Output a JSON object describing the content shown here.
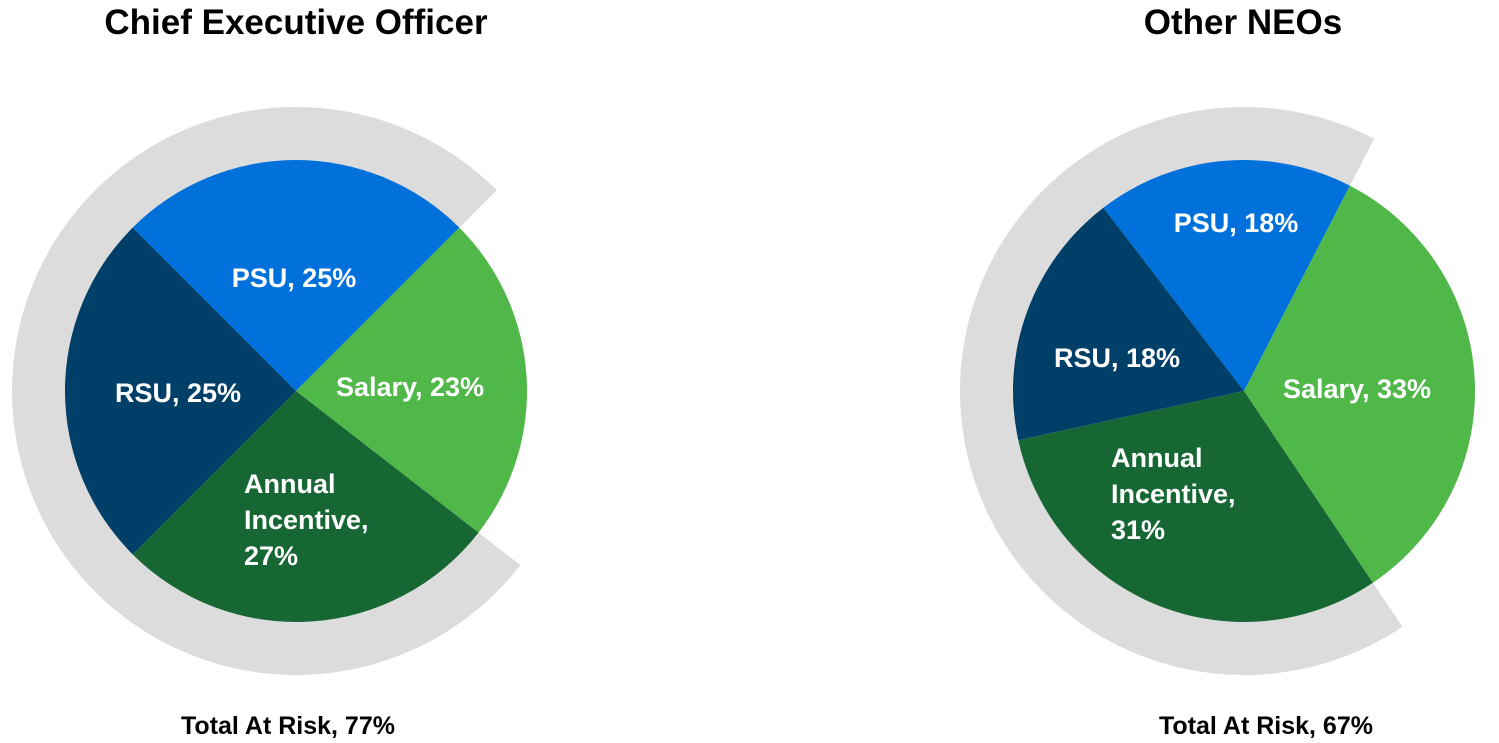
{
  "chart_data": [
    {
      "type": "pie",
      "title": "Chief Executive Officer",
      "footer": "Total At Risk, 77%",
      "at_risk_percent": 77,
      "slices": [
        {
          "name": "PSU",
          "value": 25,
          "label": "PSU, 25%",
          "color": "#0070DB"
        },
        {
          "name": "Salary",
          "value": 23,
          "label": "Salary, 23%",
          "color": "#50B848"
        },
        {
          "name": "Annual Incentive",
          "value": 27,
          "label_lines": [
            "Annual",
            "Incentive,",
            "27%"
          ],
          "color": "#176735"
        },
        {
          "name": "RSU",
          "value": 25,
          "label": "RSU, 25%",
          "color": "#003F68"
        }
      ],
      "at_risk_ring_color": "#DCDCDC"
    },
    {
      "type": "pie",
      "title": "Other NEOs",
      "footer": "Total At Risk, 67%",
      "at_risk_percent": 67,
      "slices": [
        {
          "name": "PSU",
          "value": 18,
          "label": "PSU, 18%",
          "color": "#0070DB"
        },
        {
          "name": "Salary",
          "value": 33,
          "label": "Salary, 33%",
          "color": "#50B848"
        },
        {
          "name": "Annual Incentive",
          "value": 31,
          "label_lines": [
            "Annual",
            "Incentive,",
            "31%"
          ],
          "color": "#176735"
        },
        {
          "name": "RSU",
          "value": 18,
          "label": "RSU, 18%",
          "color": "#003F68"
        }
      ],
      "at_risk_ring_color": "#DCDCDC"
    }
  ]
}
